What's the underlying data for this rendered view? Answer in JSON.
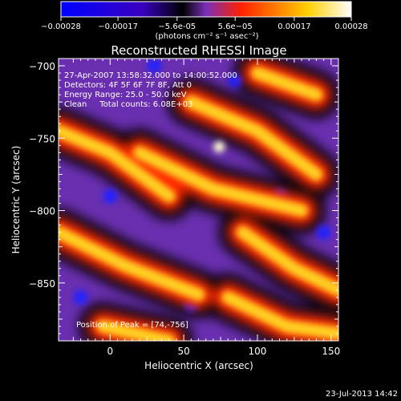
{
  "chart_data": {
    "type": "heatmap",
    "title": "Reconstructed RHESSI Image",
    "xlabel": "Heliocentric X (arcsec)",
    "ylabel": "Heliocentric Y (arcsec)",
    "xlim": [
      -35,
      155
    ],
    "ylim": [
      -890,
      -695
    ],
    "x_ticks": [
      "0",
      "50",
      "100",
      "150"
    ],
    "x_tick_values": [
      0,
      50,
      100,
      150
    ],
    "y_ticks": [
      "-700",
      "-750",
      "-800",
      "-850"
    ],
    "y_tick_values": [
      -700,
      -750,
      -800,
      -850
    ],
    "colorbar": {
      "range": [
        -0.00028,
        0.00028
      ],
      "tick_labels": [
        "-0.00028",
        "-0.00017",
        "-5.6e-05",
        "5.6e-05",
        "0.00017",
        "0.00028"
      ],
      "tick_values": [
        -0.00028,
        -0.00017,
        -5.6e-05,
        5.6e-05,
        0.00017,
        0.00028
      ],
      "units": "(photons cm⁻² s⁻¹ asec⁻²)",
      "colors": [
        "#0000ff",
        "#000000",
        "#7a2fb8",
        "#ff2000",
        "#ffff40",
        "#ffffff"
      ]
    },
    "annotations": [
      "27-Apr-2007 13:58:32.000 to 14:00:52.000",
      "Detectors: 4F 5F 6F 7F 8F, Att 0",
      "Energy Range: 25.0 - 50.0 keV",
      "Clean     Total counts: 6.08E+03"
    ],
    "peak_label": "Position of Peak = [74,-756]",
    "peak": [
      74,
      -756
    ],
    "ridges": [
      [
        [
          -35,
          -745
        ],
        [
          0,
          -760
        ],
        [
          40,
          -790
        ]
      ],
      [
        [
          55,
          -725
        ],
        [
          100,
          -745
        ],
        [
          140,
          -775
        ]
      ],
      [
        [
          20,
          -760
        ],
        [
          70,
          -785
        ],
        [
          130,
          -800
        ]
      ],
      [
        [
          -35,
          -815
        ],
        [
          10,
          -838
        ],
        [
          60,
          -858
        ]
      ],
      [
        [
          90,
          -815
        ],
        [
          125,
          -840
        ],
        [
          155,
          -855
        ]
      ],
      [
        [
          -5,
          -880
        ],
        [
          40,
          -890
        ]
      ],
      [
        [
          80,
          -860
        ],
        [
          120,
          -880
        ],
        [
          155,
          -885
        ]
      ],
      [
        [
          100,
          -705
        ],
        [
          140,
          -720
        ]
      ]
    ],
    "blue_spots": [
      [
        0,
        -790
      ],
      [
        -20,
        -860
      ],
      [
        55,
        -865
      ],
      [
        115,
        -790
      ],
      [
        145,
        -815
      ],
      [
        30,
        -700
      ],
      [
        85,
        -710
      ]
    ]
  },
  "timestamp": "23-Jul-2013 14:42"
}
